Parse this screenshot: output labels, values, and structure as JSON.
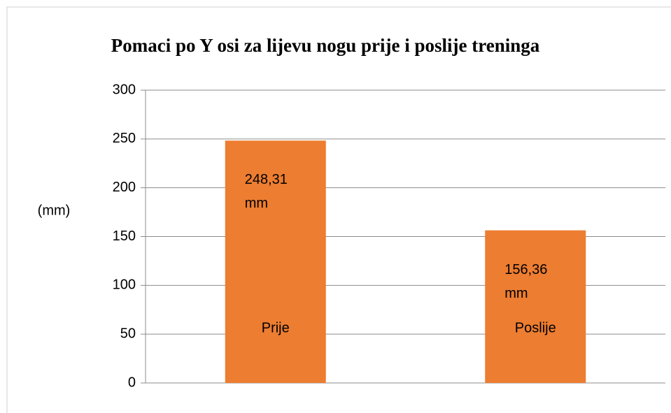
{
  "chart_data": {
    "type": "bar",
    "title": "Pomaci po Y osi za lijevu nogu  prije i poslije treninga",
    "y_label": "(mm)",
    "categories": [
      "Prije",
      "Poslije"
    ],
    "values": [
      248.31,
      156.36
    ],
    "value_labels": [
      "248,31 mm",
      "156,36 mm"
    ],
    "color": "#ed7d31",
    "ylim": [
      0,
      300
    ],
    "yticks": [
      0,
      50,
      100,
      150,
      200,
      250,
      300
    ],
    "grid": true
  }
}
